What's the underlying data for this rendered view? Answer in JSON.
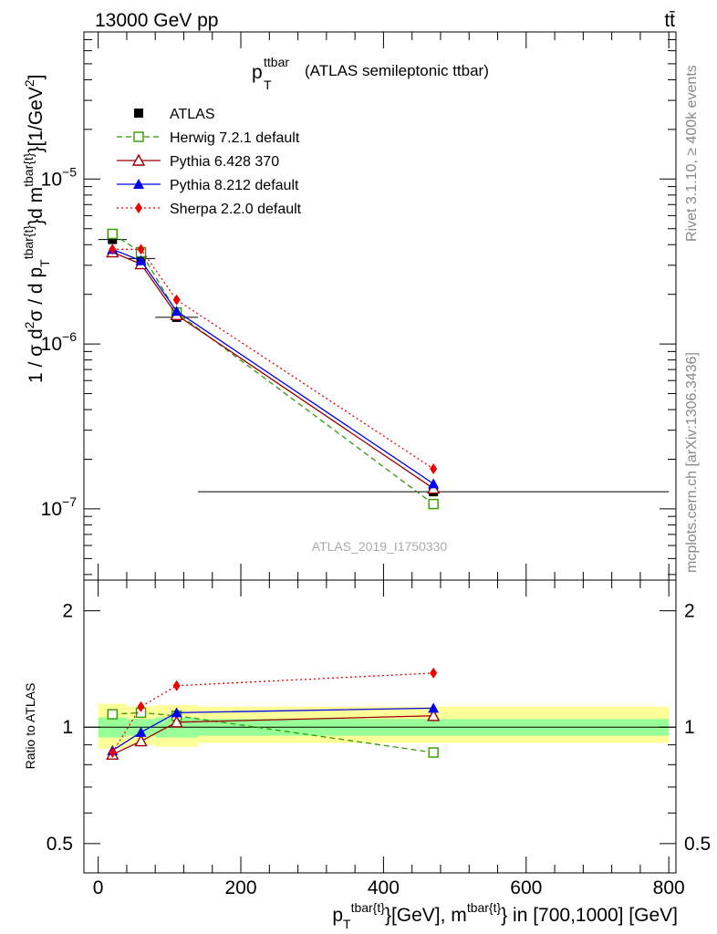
{
  "header": {
    "energy_label": "13000 GeV pp",
    "process_label": "tt̄"
  },
  "side_labels": {
    "rivet": "Rivet 3.1.10, ≥ 400k events",
    "mcplots": "mcplots.cern.ch [arXiv:1306.3436]"
  },
  "colors": {
    "atlas": "#000000",
    "herwig": "#339900",
    "pythia6": "#990000",
    "pythia8": "#0000ee",
    "sherpa": "#ee0000",
    "band_inner": "#99ff99",
    "band_outer": "#ffff99"
  },
  "chart_data": [
    {
      "id": "main",
      "type": "line",
      "title_main": "p",
      "title_sup": "ttbar",
      "title_sub": "T",
      "title_rest": "(ATLAS semileptonic ttbar)",
      "ylabel": "1 / σ d²σ / d p_T^{tbar{t}} d m^{tbar{t}} [1/GeV²]",
      "yscale": "log",
      "ylim": [
        3.7e-08,
        7.8e-05
      ],
      "xlim": [
        -20,
        810
      ],
      "ytick_labels": [
        {
          "value": 1e-07,
          "base": "10",
          "exp": "−7"
        },
        {
          "value": 1e-06,
          "base": "10",
          "exp": "−6"
        },
        {
          "value": 1e-05,
          "base": "10",
          "exp": "−5"
        }
      ],
      "watermark": "ATLAS_2019_I1750330",
      "x": [
        20,
        60,
        110,
        470
      ],
      "x_edges": [
        [
          0,
          40
        ],
        [
          40,
          80
        ],
        [
          80,
          140
        ],
        [
          140,
          800
        ]
      ],
      "series": [
        {
          "name": "ATLAS",
          "key": "atlas",
          "marker": "square",
          "line": "none",
          "values": [
            4.3e-06,
            3.3e-06,
            1.45e-06,
            1.27e-07
          ]
        },
        {
          "name": "Herwig 7.2.1 default",
          "key": "herwig",
          "marker": "open-square",
          "line": "dashed",
          "values": [
            4.65e-06,
            3.6e-06,
            1.55e-06,
            1.07e-07
          ]
        },
        {
          "name": "Pythia 6.428 370",
          "key": "pythia6",
          "marker": "open-triangle",
          "line": "solid",
          "values": [
            3.6e-06,
            3.05e-06,
            1.5e-06,
            1.33e-07
          ]
        },
        {
          "name": "Pythia 8.212 default",
          "key": "pythia8",
          "marker": "triangle",
          "line": "solid",
          "values": [
            3.75e-06,
            3.2e-06,
            1.58e-06,
            1.42e-07
          ]
        },
        {
          "name": "Sherpa 2.2.0 default",
          "key": "sherpa",
          "marker": "diamond",
          "line": "dotted",
          "values": [
            3.75e-06,
            3.75e-06,
            1.85e-06,
            1.75e-07
          ]
        }
      ]
    },
    {
      "id": "ratio",
      "type": "line",
      "ylabel": "Ratio to ATLAS",
      "yscale": "log",
      "ylim": [
        0.42,
        2.4
      ],
      "xlim": [
        -20,
        810
      ],
      "ytick_labels": [
        {
          "value": 0.5,
          "label": "0.5"
        },
        {
          "value": 1,
          "label": "1"
        },
        {
          "value": 2,
          "label": "2"
        }
      ],
      "xtick_labels": [
        {
          "value": 0,
          "label": "0"
        },
        {
          "value": 200,
          "label": "200"
        },
        {
          "value": 400,
          "label": "400"
        },
        {
          "value": 600,
          "label": "600"
        },
        {
          "value": 800,
          "label": "800"
        }
      ],
      "xlabel": "p_T^{tbar{t}} [GeV], m^{tbar{t}} in [700,1000] [GeV]",
      "x": [
        20,
        60,
        110,
        470
      ],
      "bands": {
        "x_edges": [
          [
            0,
            40
          ],
          [
            40,
            80
          ],
          [
            80,
            140
          ],
          [
            140,
            800
          ]
        ],
        "inner": [
          [
            0.94,
            1.06
          ],
          [
            0.95,
            1.05
          ],
          [
            0.94,
            1.06
          ],
          [
            0.95,
            1.05
          ]
        ],
        "outer": [
          [
            0.88,
            1.15
          ],
          [
            0.9,
            1.13
          ],
          [
            0.89,
            1.14
          ],
          [
            0.91,
            1.13
          ]
        ]
      },
      "series": [
        {
          "name": "Herwig 7.2.1 default",
          "key": "herwig",
          "marker": "open-square",
          "line": "dashed",
          "values": [
            1.08,
            1.09,
            1.07,
            0.86
          ]
        },
        {
          "name": "Pythia 6.428 370",
          "key": "pythia6",
          "marker": "open-triangle",
          "line": "solid",
          "values": [
            0.85,
            0.92,
            1.03,
            1.07
          ]
        },
        {
          "name": "Pythia 8.212 default",
          "key": "pythia8",
          "marker": "triangle",
          "line": "solid",
          "values": [
            0.87,
            0.97,
            1.09,
            1.12
          ]
        },
        {
          "name": "Sherpa 2.2.0 default",
          "key": "sherpa",
          "marker": "diamond",
          "line": "dotted",
          "values": [
            0.86,
            1.13,
            1.28,
            1.38
          ]
        }
      ]
    }
  ]
}
